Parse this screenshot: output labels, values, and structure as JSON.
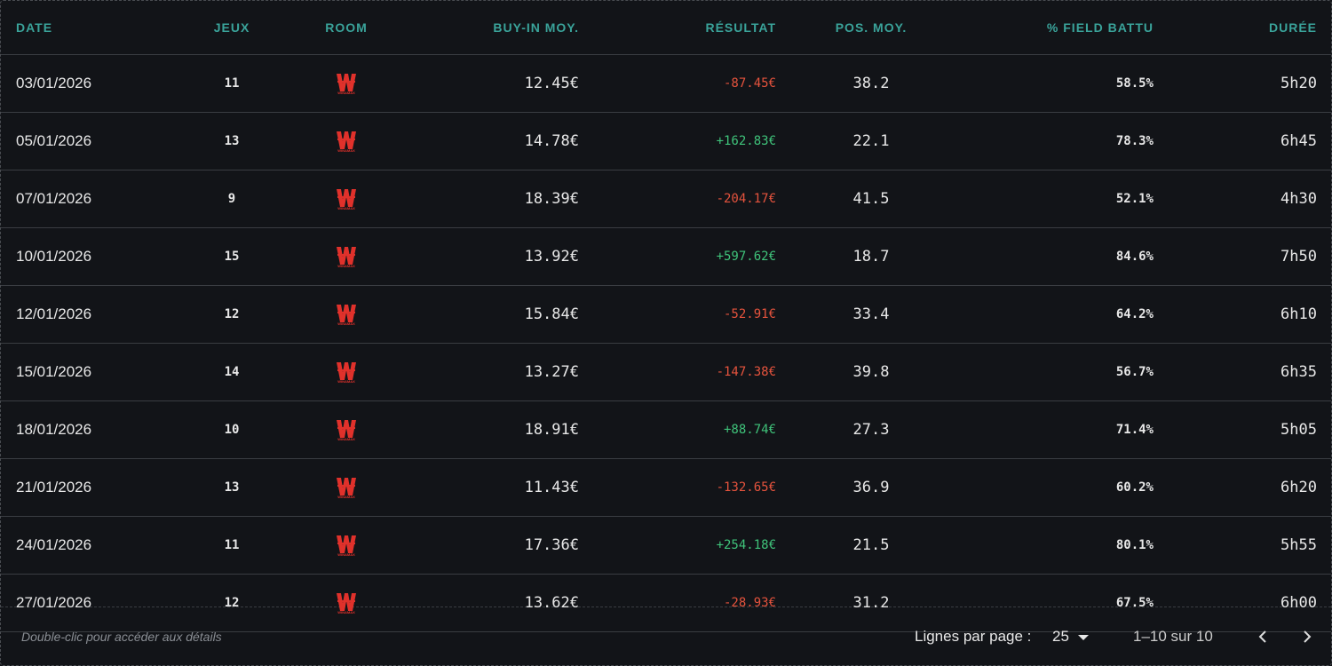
{
  "table": {
    "headers": [
      "DATE",
      "JEUX",
      "ROOM",
      "BUY-IN MOY.",
      "RÉSULTAT",
      "POS. MOY.",
      "% FIELD BATTU",
      "DURÉE"
    ],
    "rows": [
      [
        "03/01/2026",
        "11",
        "WINAMAX",
        "12.45€",
        "-87.45€",
        "38.2",
        "58.5%",
        "5h20"
      ],
      [
        "05/01/2026",
        "13",
        "WINAMAX",
        "14.78€",
        "+162.83€",
        "22.1",
        "78.3%",
        "6h45"
      ],
      [
        "07/01/2026",
        "9",
        "WINAMAX",
        "18.39€",
        "-204.17€",
        "41.5",
        "52.1%",
        "4h30"
      ],
      [
        "10/01/2026",
        "15",
        "WINAMAX",
        "13.92€",
        "+597.62€",
        "18.7",
        "84.6%",
        "7h50"
      ],
      [
        "12/01/2026",
        "12",
        "WINAMAX",
        "15.84€",
        "-52.91€",
        "33.4",
        "64.2%",
        "6h10"
      ],
      [
        "15/01/2026",
        "14",
        "WINAMAX",
        "13.27€",
        "-147.38€",
        "39.8",
        "56.7%",
        "6h35"
      ],
      [
        "18/01/2026",
        "10",
        "WINAMAX",
        "18.91€",
        "+88.74€",
        "27.3",
        "71.4%",
        "5h05"
      ],
      [
        "21/01/2026",
        "13",
        "WINAMAX",
        "11.43€",
        "-132.65€",
        "36.9",
        "60.2%",
        "6h20"
      ],
      [
        "24/01/2026",
        "11",
        "WINAMAX",
        "17.36€",
        "+254.18€",
        "21.5",
        "80.1%",
        "5h55"
      ],
      [
        "27/01/2026",
        "12",
        "WINAMAX",
        "13.62€",
        "-28.93€",
        "31.2",
        "67.5%",
        "6h00"
      ]
    ]
  },
  "footer": {
    "hint": "Double-clic pour accéder aux détails",
    "rows_per_page_label": "Lignes par page :",
    "rows_per_page": "25",
    "range": "1–10 sur 10"
  }
}
